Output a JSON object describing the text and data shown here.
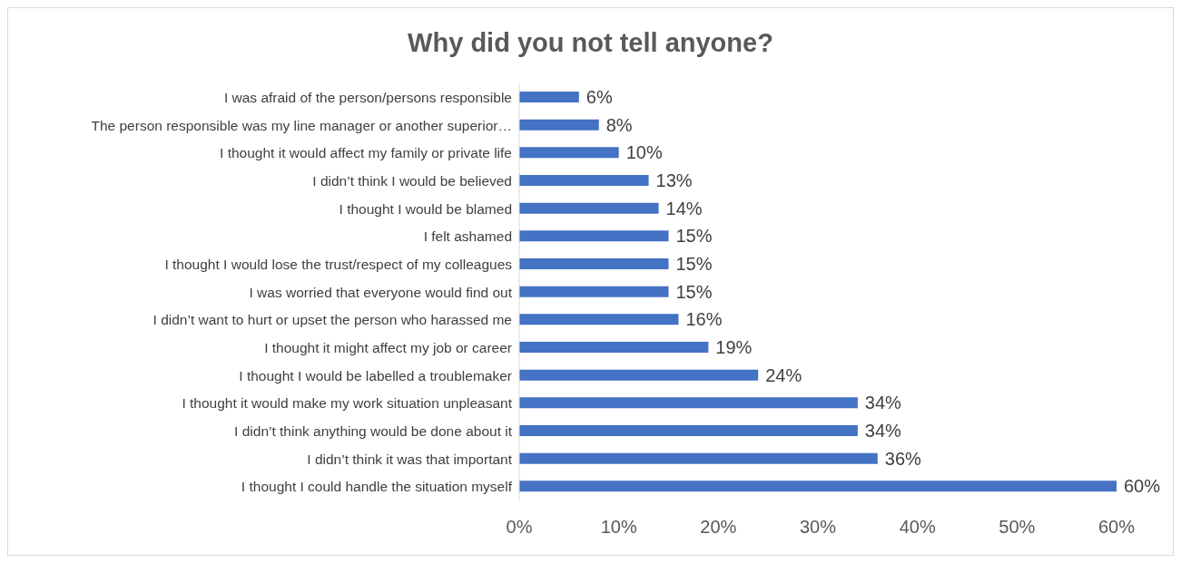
{
  "chart_data": {
    "type": "bar",
    "orientation": "horizontal",
    "title": "Why did you not tell anyone?",
    "categories": [
      "I was afraid of the person/persons responsible",
      "The person responsible was my line manager or another superior…",
      "I thought it would affect my family or private life",
      "I didn’t think I would be believed",
      "I thought I would be blamed",
      "I felt ashamed",
      "I thought I would lose the trust/respect of my colleagues",
      "I was worried that everyone would find out",
      "I didn’t want to hurt or upset the person who harassed me",
      "I thought it might affect my job or career",
      "I thought I would be labelled a troublemaker",
      "I thought it would make my work situation unpleasant",
      "I didn’t think anything would be done about it",
      "I didn’t think it was that important",
      "I thought I could handle the situation myself"
    ],
    "values": [
      6,
      8,
      10,
      13,
      14,
      15,
      15,
      15,
      16,
      19,
      24,
      34,
      34,
      36,
      60
    ],
    "value_labels": [
      "6%",
      "8%",
      "10%",
      "13%",
      "14%",
      "15%",
      "15%",
      "15%",
      "16%",
      "19%",
      "24%",
      "34%",
      "34%",
      "36%",
      "60%"
    ],
    "color": "#4472c4",
    "xlim": [
      0,
      60
    ],
    "xticks": [
      {
        "value": 0,
        "label": "0%"
      },
      {
        "value": 10,
        "label": "10%"
      },
      {
        "value": 20,
        "label": "20%"
      },
      {
        "value": 30,
        "label": "30%"
      },
      {
        "value": 40,
        "label": "40%"
      },
      {
        "value": 50,
        "label": "50%"
      },
      {
        "value": 60,
        "label": "60%"
      }
    ],
    "grid": false,
    "legend": false
  }
}
